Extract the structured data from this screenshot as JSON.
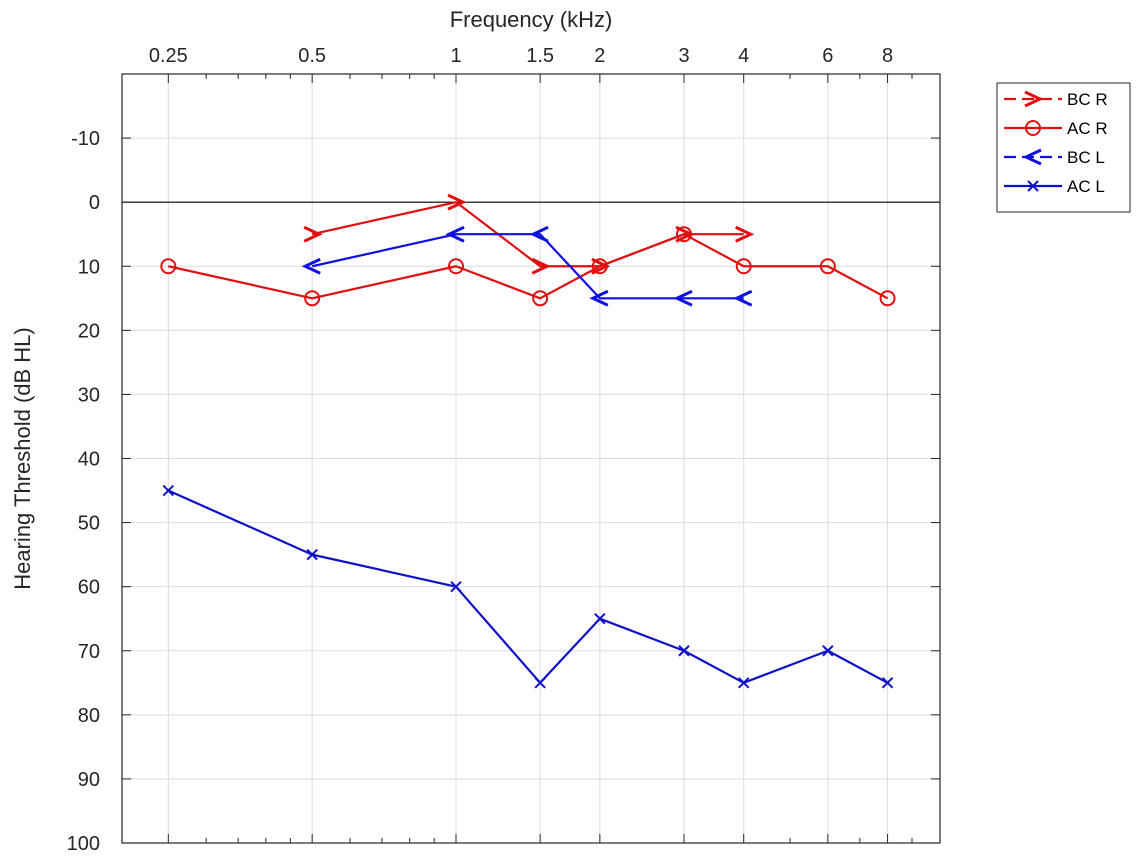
{
  "chart_data": {
    "type": "line",
    "title": "",
    "xlabel": "Frequency (kHz)",
    "ylabel": "Hearing Threshold (dB HL)",
    "x_scale": "log",
    "x_axis_position": "top",
    "y_reversed": true,
    "ylim": [
      -20,
      100
    ],
    "x_ticks": [
      0.25,
      0.5,
      1,
      1.5,
      2,
      3,
      4,
      6,
      8
    ],
    "x_tick_labels": [
      "0.25",
      "0.5",
      "1",
      "1.5",
      "2",
      "3",
      "4",
      "6",
      "8"
    ],
    "y_ticks": [
      -10,
      0,
      10,
      20,
      30,
      40,
      50,
      60,
      70,
      80,
      90,
      100
    ],
    "y_tick_labels": [
      "-10",
      "0",
      "10",
      "20",
      "30",
      "40",
      "50",
      "60",
      "70",
      "80",
      "90",
      "100"
    ],
    "grid": true,
    "zero_line": 0,
    "legend_position": "outside top-right",
    "series": [
      {
        "name": "BC R",
        "color": "#e01010",
        "marker": "right-arrow",
        "line_style": "solid",
        "points": [
          [
            0.5,
            5
          ],
          [
            1,
            0
          ],
          [
            1.5,
            10
          ],
          [
            2,
            10
          ],
          [
            3,
            5
          ],
          [
            4,
            5
          ]
        ]
      },
      {
        "name": "AC R",
        "color": "#e01010",
        "marker": "circle",
        "line_style": "solid",
        "points": [
          [
            0.25,
            10
          ],
          [
            0.5,
            15
          ],
          [
            1,
            10
          ],
          [
            1.5,
            15
          ],
          [
            2,
            10
          ],
          [
            3,
            5
          ],
          [
            4,
            10
          ],
          [
            6,
            10
          ],
          [
            8,
            15
          ]
        ]
      },
      {
        "name": "BC L",
        "color": "#1010e0",
        "marker": "left-arrow",
        "line_style": "solid",
        "points": [
          [
            0.5,
            10
          ],
          [
            1,
            5
          ],
          [
            1.5,
            5
          ],
          [
            2,
            15
          ],
          [
            3,
            15
          ],
          [
            4,
            15
          ]
        ]
      },
      {
        "name": "AC L",
        "color": "#1010c8",
        "marker": "x",
        "line_style": "solid",
        "points": [
          [
            0.25,
            45
          ],
          [
            0.5,
            55
          ],
          [
            1,
            60
          ],
          [
            1.5,
            75
          ],
          [
            2,
            65
          ],
          [
            3,
            70
          ],
          [
            4,
            75
          ],
          [
            6,
            70
          ],
          [
            8,
            75
          ]
        ]
      }
    ]
  }
}
